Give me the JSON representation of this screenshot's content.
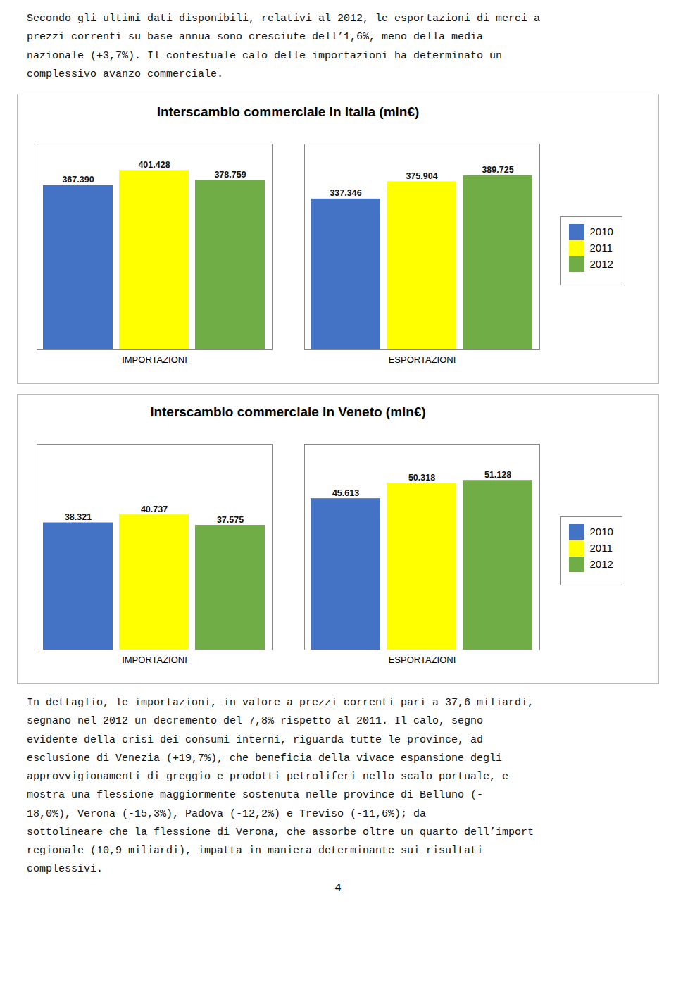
{
  "intro_text": "Secondo gli ultimi dati disponibili, relativi al 2012, le esportazioni di merci a\nprezzi correnti su base annua sono cresciute dell’1,6%, meno della media\nnazionale (+3,7%). Il contestuale calo delle importazioni ha determinato un\ncomplessivo avanzo commerciale.",
  "chart_data": [
    {
      "type": "bar",
      "title": "Interscambio commerciale in Italia (mln€)",
      "categories": [
        "IMPORTAZIONI",
        "ESPORTAZIONI"
      ],
      "series": [
        {
          "name": "2010",
          "color": "#4472C4",
          "values": [
            367.39,
            337.346
          ],
          "value_labels": [
            "367.390",
            "337.346"
          ]
        },
        {
          "name": "2011",
          "color": "#FFFF00",
          "values": [
            401.428,
            375.904
          ],
          "value_labels": [
            "401.428",
            "375.904"
          ]
        },
        {
          "name": "2012",
          "color": "#70AD47",
          "values": [
            378.759,
            389.725
          ],
          "value_labels": [
            "378.759",
            "389.725"
          ]
        }
      ],
      "ylim": [
        0,
        460
      ],
      "tick_labels": "x",
      "data_labels": true,
      "grid": false,
      "legend": "right"
    },
    {
      "type": "bar",
      "title": "Interscambio commerciale in Veneto (mln€)",
      "categories": [
        "IMPORTAZIONI",
        "ESPORTAZIONI"
      ],
      "series": [
        {
          "name": "2010",
          "color": "#4472C4",
          "values": [
            38.321,
            45.613
          ],
          "value_labels": [
            "38.321",
            "45.613"
          ]
        },
        {
          "name": "2011",
          "color": "#FFFF00",
          "values": [
            40.737,
            50.318
          ],
          "value_labels": [
            "40.737",
            "50.318"
          ]
        },
        {
          "name": "2012",
          "color": "#70AD47",
          "values": [
            37.575,
            51.128
          ],
          "value_labels": [
            "37.575",
            "51.128"
          ]
        }
      ],
      "ylim": [
        0,
        62
      ],
      "tick_labels": "x",
      "data_labels": true,
      "grid": false,
      "legend": "right"
    }
  ],
  "body_text": "In dettaglio, le importazioni, in valore a prezzi correnti pari a 37,6 miliardi,\nsegnano nel 2012 un decremento del 7,8% rispetto al 2011. Il calo, segno\nevidente della crisi dei consumi interni, riguarda tutte le province, ad\nesclusione di Venezia (+19,7%), che beneficia della vivace espansione degli\napprovvigionamenti di greggio e prodotti petroliferi nello scalo portuale, e\nmostra una flessione maggiormente sostenuta nelle province di Belluno (-\n18,0%), Verona (-15,3%), Padova (-12,2%) e Treviso (-11,6%); da\nsottolineare che la flessione di Verona, che assorbe oltre un quarto dell’import\nregionale (10,9 miliardi), impatta in maniera determinante sui risultati\ncomplessivi.",
  "page_number": "4"
}
